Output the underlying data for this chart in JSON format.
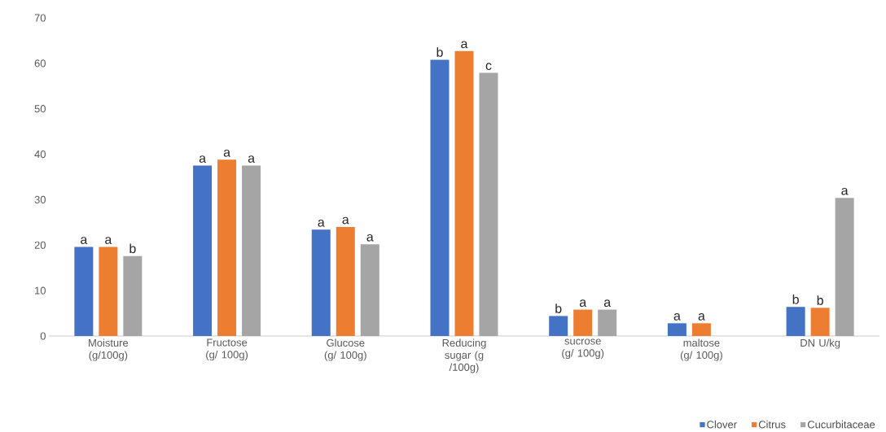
{
  "chart_data": {
    "type": "bar",
    "categories": [
      "Moisture (g/100g)",
      "Fructose (g/ 100g)",
      "Glucose (g/ 100g)",
      "Reducing sugar (g /100g)",
      "sucrose (g/ 100g)",
      "maltose (g/ 100g)",
      "DN U/kg"
    ],
    "series": [
      {
        "name": "Clover",
        "color": "#4472c4",
        "values": [
          19.6,
          37.5,
          23.4,
          60.8,
          4.4,
          2.8,
          6.4
        ],
        "value_labels": [
          "a",
          "a",
          "a",
          "b",
          "b",
          "a",
          "b"
        ]
      },
      {
        "name": "Citrus",
        "color": "#ed7d31",
        "values": [
          19.6,
          38.8,
          24.0,
          62.7,
          5.8,
          2.8,
          6.2
        ],
        "value_labels": [
          "a",
          "a",
          "a",
          "a",
          "a",
          "a",
          "b"
        ]
      },
      {
        "name": "Cucurbitaceae",
        "color": "#a5a5a5",
        "values": [
          17.6,
          37.5,
          20.2,
          57.9,
          5.8,
          null,
          30.4
        ],
        "value_labels": [
          "b",
          "a",
          "a",
          "c",
          "a",
          null,
          "a"
        ]
      }
    ],
    "ylim": [
      0,
      70
    ],
    "yticks": [
      0,
      10,
      20,
      30,
      40,
      50,
      60,
      70
    ],
    "grid": false,
    "legend": "bottom right"
  }
}
